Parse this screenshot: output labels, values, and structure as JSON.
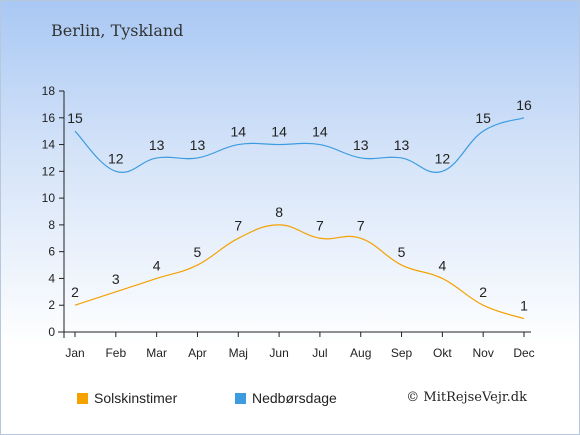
{
  "title": "Berlin, Tyskland",
  "credit": "© MitRejseVejr.dk",
  "legend": {
    "sun": "Solskinstimer",
    "rain": "Nedbørsdage"
  },
  "colors": {
    "sun": "#f5a100",
    "rain": "#3d9ce0"
  },
  "chart_data": {
    "type": "line",
    "categories": [
      "Jan",
      "Feb",
      "Mar",
      "Apr",
      "Maj",
      "Jun",
      "Jul",
      "Aug",
      "Sep",
      "Okt",
      "Nov",
      "Dec"
    ],
    "series": [
      {
        "name": "Solskinstimer",
        "values": [
          2,
          3,
          4,
          5,
          7,
          8,
          7,
          7,
          5,
          4,
          2,
          1
        ]
      },
      {
        "name": "Nedbørsdage",
        "values": [
          15,
          12,
          13,
          13,
          14,
          14,
          14,
          13,
          13,
          12,
          15,
          16
        ]
      }
    ],
    "ylim": [
      0,
      18
    ],
    "yticks": [
      0,
      2,
      4,
      6,
      8,
      10,
      12,
      14,
      16,
      18
    ],
    "grid": false,
    "legend_position": "bottom"
  }
}
